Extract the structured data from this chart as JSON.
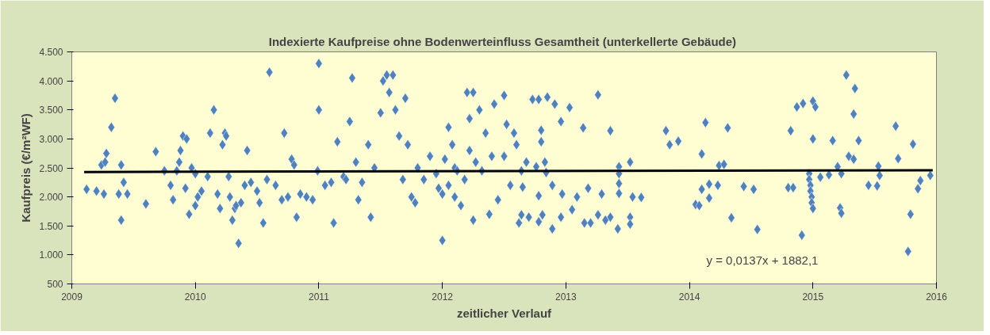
{
  "chart_data": {
    "type": "scatter",
    "title": "Indexierte Kaufpreise  ohne Bodenwerteinfluss Gesamtheit (unterkellerte Gebäude)",
    "xlabel": "zeitlicher Verlauf",
    "ylabel": "Kaufpreis (€/m²WF)",
    "annotations": [
      "y = 0,0137x + 1882,1"
    ],
    "xlim": [
      2009,
      2016
    ],
    "ylim": [
      500,
      4500
    ],
    "xticks": [
      2009,
      2010,
      2011,
      2012,
      2013,
      2014,
      2015,
      2016
    ],
    "yticks": [
      500,
      {
        "value": 1000,
        "label": "1.000"
      },
      {
        "value": 1500,
        "label": "1.500"
      },
      {
        "value": 2000,
        "label": "2.000"
      },
      {
        "value": 2500,
        "label": "2.500"
      },
      {
        "value": 3000,
        "label": "3.000"
      },
      {
        "value": 3500,
        "label": "3.500"
      },
      {
        "value": 4000,
        "label": "4.000"
      },
      {
        "value": 4500,
        "label": "4.500"
      }
    ],
    "grid": false,
    "marker": "diamond",
    "series": [
      {
        "color": "#4f81bd",
        "x": [
          2009.12,
          2009.2,
          2009.26,
          2009.24,
          2009.27,
          2009.28,
          2009.32,
          2009.35,
          2009.38,
          2009.4,
          2009.42,
          2009.4,
          2009.45,
          2009.6,
          2009.68,
          2009.75,
          2009.8,
          2009.82,
          2009.85,
          2009.87,
          2009.88,
          2009.9,
          2009.93,
          2009.92,
          2009.95,
          2009.97,
          2010.0,
          2010.0,
          2010.02,
          2010.05,
          2010.1,
          2010.12,
          2010.15,
          2010.18,
          2010.2,
          2010.22,
          2010.24,
          2010.25,
          2010.27,
          2010.28,
          2010.3,
          2010.32,
          2010.33,
          2010.35,
          2010.37,
          2010.4,
          2010.42,
          2010.45,
          2010.5,
          2010.52,
          2010.55,
          2010.58,
          2010.6,
          2010.65,
          2010.7,
          2010.72,
          2010.75,
          2010.78,
          2010.8,
          2010.82,
          2010.85,
          2010.9,
          2010.95,
          2010.99,
          2011.0,
          2011.0,
          2011.05,
          2011.1,
          2011.12,
          2011.15,
          2011.2,
          2011.22,
          2011.25,
          2011.27,
          2011.3,
          2011.32,
          2011.35,
          2011.4,
          2011.42,
          2011.45,
          2011.5,
          2011.52,
          2011.55,
          2011.57,
          2011.6,
          2011.62,
          2011.65,
          2011.68,
          2011.7,
          2011.72,
          2011.75,
          2011.78,
          2011.8,
          2011.85,
          2011.9,
          2011.95,
          2011.97,
          2012.0,
          2012.0,
          2012.02,
          2012.05,
          2012.05,
          2012.08,
          2012.1,
          2012.1,
          2012.12,
          2012.15,
          2012.18,
          2012.2,
          2012.22,
          2012.22,
          2012.25,
          2012.25,
          2012.27,
          2012.3,
          2012.32,
          2012.35,
          2012.38,
          2012.4,
          2012.42,
          2012.45,
          2012.5,
          2012.5,
          2012.52,
          2012.55,
          2012.58,
          2012.6,
          2012.73,
          2012.78,
          2012.85,
          2012.91,
          2013.03,
          2013.26,
          2012.96,
          2013.14,
          2013.36,
          2012.8,
          2012.8,
          2012.68,
          2012.76,
          2012.83,
          2012.84,
          2012.64,
          2013.43,
          2013.52,
          2013.43,
          2013.43,
          2012.65,
          2012.78,
          2012.89,
          2012.97,
          2013.09,
          2013.18,
          2013.29,
          2013.43,
          2013.54,
          2013.61,
          2013.05,
          2012.64,
          2012.7,
          2012.81,
          2012.96,
          2013.26,
          2013.36,
          2013.52,
          2012.62,
          2012.78,
          2012.89,
          2013.15,
          2013.2,
          2013.32,
          2013.42,
          2013.52,
          2014.13,
          2014.31,
          2013.81,
          2013.84,
          2013.91,
          2014.1,
          2014.24,
          2014.28,
          2014.1,
          2014.16,
          2014.23,
          2014.16,
          2014.05,
          2014.08,
          2014.44,
          2014.52,
          2014.34,
          2014.55,
          2014.8,
          2014.84,
          2014.82,
          2014.87,
          2014.92,
          2014.91,
          2014.97,
          2014.97,
          2014.98,
          2014.98,
          2014.99,
          2014.99,
          2015.0,
          2015.0,
          2015.02,
          2015.0,
          2015.27,
          2015.34,
          2015.33,
          2015.16,
          2015.37,
          2015.29,
          2015.33,
          2015.2,
          2015.23,
          2015.13,
          2015.06,
          2015.53,
          2015.54,
          2015.45,
          2015.52,
          2015.67,
          2015.69,
          2015.81,
          2015.87,
          2015.95,
          2015.85,
          2015.22,
          2015.23,
          2015.79,
          2015.77
        ],
        "values": [
          2130,
          2100,
          2050,
          2550,
          2600,
          2750,
          3200,
          3700,
          2050,
          2550,
          2250,
          1600,
          2050,
          1880,
          2780,
          2450,
          2200,
          1950,
          2450,
          2600,
          2800,
          3050,
          3000,
          2150,
          1700,
          2500,
          2400,
          1850,
          2000,
          2100,
          2350,
          3100,
          3500,
          2050,
          1800,
          2900,
          3100,
          3050,
          2350,
          2000,
          1600,
          1800,
          1850,
          1200,
          1900,
          2200,
          2800,
          2250,
          2100,
          1900,
          1550,
          2300,
          4150,
          2200,
          1950,
          3100,
          2000,
          2650,
          2550,
          1650,
          2050,
          2000,
          1950,
          2450,
          3500,
          4300,
          2200,
          2250,
          1550,
          2950,
          2350,
          2300,
          3300,
          4050,
          2600,
          1950,
          2250,
          2900,
          1650,
          2500,
          3450,
          4000,
          4100,
          3800,
          4100,
          3500,
          3050,
          2300,
          3700,
          2900,
          2000,
          1900,
          2500,
          2300,
          2700,
          2400,
          2150,
          1250,
          2050,
          2650,
          3200,
          2200,
          2900,
          2000,
          2500,
          2450,
          1850,
          2300,
          3800,
          3350,
          2800,
          3800,
          1600,
          2600,
          3500,
          2450,
          3100,
          1700,
          2700,
          3600,
          1950,
          3750,
          2700,
          3250,
          2200,
          3100,
          2900,
          3680,
          3680,
          3720,
          3600,
          3540,
          3760,
          3300,
          3190,
          3140,
          3150,
          2950,
          2600,
          2520,
          2600,
          2420,
          2450,
          2520,
          2600,
          2400,
          2230,
          2170,
          2020,
          2200,
          2050,
          2000,
          2150,
          2050,
          2060,
          2000,
          1990,
          1780,
          1690,
          1650,
          1690,
          1650,
          1690,
          1650,
          1650,
          1550,
          1570,
          1450,
          1550,
          1550,
          1600,
          1450,
          1530,
          3280,
          3190,
          3140,
          2900,
          2960,
          2740,
          2540,
          2560,
          2130,
          2220,
          2200,
          1980,
          1870,
          1850,
          2180,
          2130,
          1640,
          1440,
          2160,
          2160,
          3140,
          3550,
          3610,
          1340,
          2400,
          2300,
          2200,
          2100,
          2000,
          1900,
          1800,
          3650,
          3550,
          3000,
          4100,
          3870,
          3430,
          2970,
          2970,
          2700,
          2650,
          2520,
          2400,
          2380,
          2340,
          2530,
          2370,
          2200,
          2190,
          3220,
          2660,
          2910,
          2280,
          2370,
          2140,
          1810,
          1720,
          1700,
          1060
        ]
      },
      {
        "type": "line",
        "marker": "none",
        "color": "#000000",
        "x": [
          2009.1,
          2015.97
        ],
        "values": [
          2430,
          2460
        ]
      }
    ]
  }
}
